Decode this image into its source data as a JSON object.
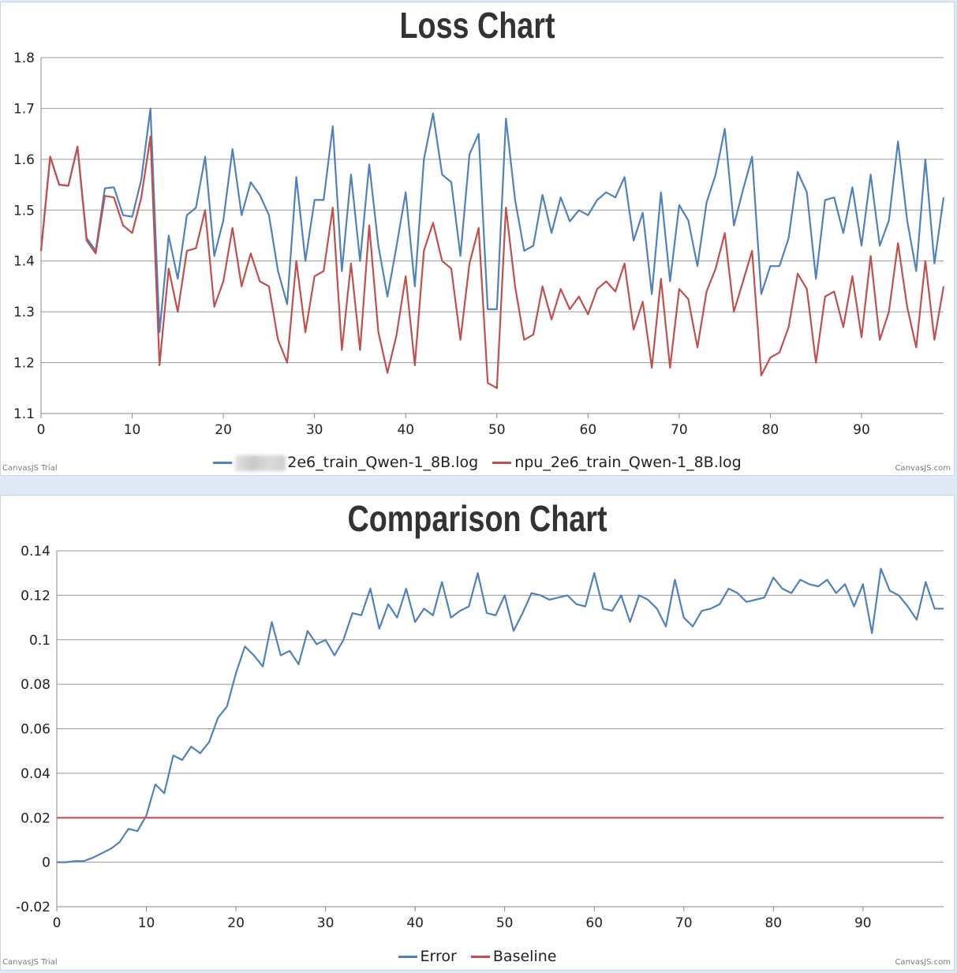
{
  "chart_data": [
    {
      "type": "line",
      "title": "Loss Chart",
      "xlabel": "",
      "ylabel": "",
      "xlim": [
        0,
        99
      ],
      "ylim": [
        1.1,
        1.8
      ],
      "x_ticks": [
        "0",
        "10",
        "20",
        "30",
        "40",
        "50",
        "60",
        "70",
        "80",
        "90"
      ],
      "y_ticks": [
        "1.1",
        "1.2",
        "1.3",
        "1.4",
        "1.5",
        "1.6",
        "1.7",
        "1.8"
      ],
      "grid": true,
      "legend": "bottom",
      "series": [
        {
          "name": "2e6_train_Qwen-1_8B.log",
          "color": "#4f81bd",
          "values": [
            1.42,
            1.605,
            1.55,
            1.548,
            1.625,
            1.445,
            1.42,
            1.543,
            1.545,
            1.49,
            1.487,
            1.56,
            1.7,
            1.26,
            1.45,
            1.365,
            1.49,
            1.505,
            1.605,
            1.41,
            1.48,
            1.62,
            1.49,
            1.555,
            1.53,
            1.49,
            1.38,
            1.315,
            1.565,
            1.4,
            1.52,
            1.52,
            1.665,
            1.38,
            1.57,
            1.4,
            1.59,
            1.43,
            1.33,
            1.43,
            1.535,
            1.35,
            1.6,
            1.69,
            1.57,
            1.555,
            1.41,
            1.61,
            1.65,
            1.305,
            1.305,
            1.68,
            1.52,
            1.42,
            1.43,
            1.53,
            1.455,
            1.525,
            1.478,
            1.5,
            1.49,
            1.52,
            1.535,
            1.525,
            1.565,
            1.44,
            1.495,
            1.335,
            1.535,
            1.36,
            1.51,
            1.48,
            1.39,
            1.515,
            1.57,
            1.66,
            1.47,
            1.54,
            1.605,
            1.335,
            1.39,
            1.39,
            1.445,
            1.575,
            1.535,
            1.365,
            1.52,
            1.525,
            1.455,
            1.545,
            1.43,
            1.57,
            1.43,
            1.48,
            1.635,
            1.48,
            1.38,
            1.6,
            1.395,
            1.525
          ]
        },
        {
          "name": "npu_2e6_train_Qwen-1_8B.log",
          "color": "#c0504d",
          "values": [
            1.42,
            1.605,
            1.55,
            1.548,
            1.625,
            1.44,
            1.415,
            1.528,
            1.525,
            1.47,
            1.455,
            1.525,
            1.645,
            1.195,
            1.385,
            1.3,
            1.42,
            1.425,
            1.5,
            1.31,
            1.36,
            1.465,
            1.35,
            1.415,
            1.36,
            1.35,
            1.245,
            1.2,
            1.4,
            1.26,
            1.37,
            1.38,
            1.505,
            1.225,
            1.395,
            1.225,
            1.47,
            1.26,
            1.18,
            1.255,
            1.37,
            1.195,
            1.42,
            1.475,
            1.4,
            1.385,
            1.245,
            1.395,
            1.465,
            1.16,
            1.15,
            1.505,
            1.35,
            1.245,
            1.255,
            1.35,
            1.285,
            1.345,
            1.305,
            1.33,
            1.295,
            1.345,
            1.36,
            1.34,
            1.395,
            1.265,
            1.32,
            1.19,
            1.365,
            1.19,
            1.345,
            1.325,
            1.23,
            1.34,
            1.385,
            1.455,
            1.3,
            1.36,
            1.42,
            1.175,
            1.21,
            1.22,
            1.27,
            1.375,
            1.345,
            1.2,
            1.33,
            1.34,
            1.27,
            1.37,
            1.25,
            1.41,
            1.245,
            1.3,
            1.435,
            1.31,
            1.23,
            1.4,
            1.245,
            1.35
          ]
        }
      ]
    },
    {
      "type": "line",
      "title": "Comparison Chart",
      "xlabel": "",
      "ylabel": "",
      "xlim": [
        0,
        99
      ],
      "ylim": [
        -0.02,
        0.14
      ],
      "x_ticks": [
        "0",
        "10",
        "20",
        "30",
        "40",
        "50",
        "60",
        "70",
        "80",
        "90"
      ],
      "y_ticks": [
        "-0.02",
        "0",
        "0.02",
        "0.04",
        "0.06",
        "0.08",
        "0.1",
        "0.12",
        "0.14"
      ],
      "grid": true,
      "legend": "bottom",
      "series": [
        {
          "name": "Error",
          "color": "#4f81bd",
          "values": [
            0,
            0,
            0.0005,
            0.0005,
            0.002,
            0.004,
            0.006,
            0.009,
            0.015,
            0.014,
            0.021,
            0.035,
            0.031,
            0.048,
            0.046,
            0.052,
            0.049,
            0.054,
            0.065,
            0.07,
            0.085,
            0.097,
            0.093,
            0.088,
            0.108,
            0.093,
            0.095,
            0.089,
            0.104,
            0.098,
            0.1,
            0.093,
            0.1,
            0.112,
            0.111,
            0.123,
            0.105,
            0.116,
            0.11,
            0.123,
            0.108,
            0.114,
            0.111,
            0.126,
            0.11,
            0.113,
            0.115,
            0.13,
            0.112,
            0.111,
            0.12,
            0.104,
            0.112,
            0.121,
            0.12,
            0.118,
            0.119,
            0.12,
            0.116,
            0.115,
            0.13,
            0.114,
            0.113,
            0.12,
            0.108,
            0.12,
            0.118,
            0.114,
            0.106,
            0.127,
            0.11,
            0.106,
            0.113,
            0.114,
            0.116,
            0.123,
            0.121,
            0.117,
            0.118,
            0.119,
            0.128,
            0.123,
            0.121,
            0.127,
            0.125,
            0.124,
            0.127,
            0.121,
            0.125,
            0.115,
            0.125,
            0.103,
            0.132,
            0.122,
            0.12,
            0.115,
            0.109,
            0.126,
            0.114,
            0.114
          ]
        },
        {
          "name": "Baseline",
          "color": "#c0504d",
          "values": [
            0.02,
            0.02,
            0.02,
            0.02,
            0.02,
            0.02,
            0.02,
            0.02,
            0.02,
            0.02,
            0.02,
            0.02,
            0.02,
            0.02,
            0.02,
            0.02,
            0.02,
            0.02,
            0.02,
            0.02,
            0.02,
            0.02,
            0.02,
            0.02,
            0.02,
            0.02,
            0.02,
            0.02,
            0.02,
            0.02,
            0.02,
            0.02,
            0.02,
            0.02,
            0.02,
            0.02,
            0.02,
            0.02,
            0.02,
            0.02,
            0.02,
            0.02,
            0.02,
            0.02,
            0.02,
            0.02,
            0.02,
            0.02,
            0.02,
            0.02,
            0.02,
            0.02,
            0.02,
            0.02,
            0.02,
            0.02,
            0.02,
            0.02,
            0.02,
            0.02,
            0.02,
            0.02,
            0.02,
            0.02,
            0.02,
            0.02,
            0.02,
            0.02,
            0.02,
            0.02,
            0.02,
            0.02,
            0.02,
            0.02,
            0.02,
            0.02,
            0.02,
            0.02,
            0.02,
            0.02,
            0.02,
            0.02,
            0.02,
            0.02,
            0.02,
            0.02,
            0.02,
            0.02,
            0.02,
            0.02,
            0.02,
            0.02,
            0.02,
            0.02,
            0.02,
            0.02,
            0.02,
            0.02,
            0.02,
            0.02
          ]
        }
      ]
    }
  ],
  "credits": {
    "left": "CanvasJS Trial",
    "right": "CanvasJS.com"
  }
}
